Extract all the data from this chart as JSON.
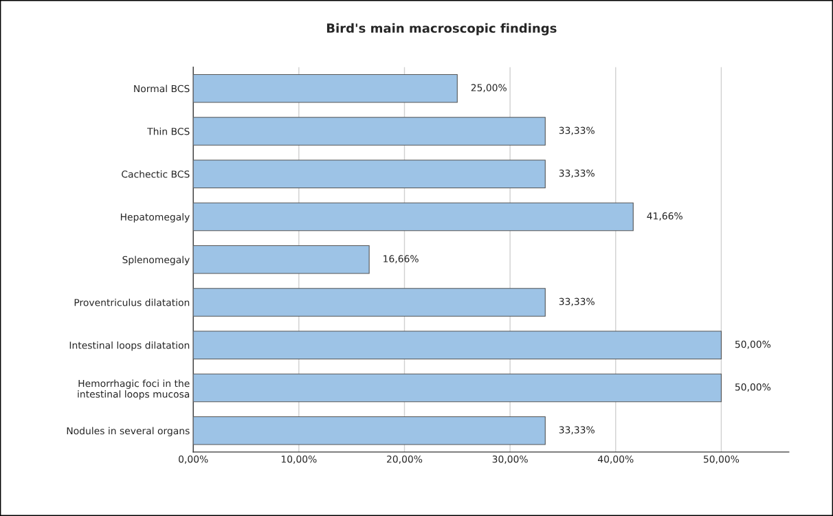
{
  "chart_data": {
    "type": "bar",
    "orientation": "horizontal",
    "title": "Bird's main macroscopic findings",
    "categories": [
      "Normal BCS",
      "Thin BCS",
      "Cachectic BCS",
      "Hepatomegaly",
      "Splenomegaly",
      "Proventriculus dilatation",
      "Intestinal loops dilatation",
      "Hemorrhagic foci in the\nintestinal loops mucosa",
      "Nodules in several organs"
    ],
    "values": [
      25.0,
      33.33,
      33.33,
      41.66,
      16.66,
      33.33,
      50.0,
      50.0,
      33.33
    ],
    "value_labels": [
      "25,00%",
      "33,33%",
      "33,33%",
      "41,66%",
      "16,66%",
      "33,33%",
      "50,00%",
      "50,00%",
      "33,33%"
    ],
    "color": "#9dc3e6",
    "xlim": [
      0,
      56.4
    ],
    "xticks": [
      {
        "value": 0,
        "label": "0,00%"
      },
      {
        "value": 10,
        "label": "10,00%"
      },
      {
        "value": 20,
        "label": "20,00%"
      },
      {
        "value": 30,
        "label": "30,00%"
      },
      {
        "value": 40,
        "label": "40,00%"
      },
      {
        "value": 50,
        "label": "50,00%"
      }
    ],
    "grid": "x"
  }
}
